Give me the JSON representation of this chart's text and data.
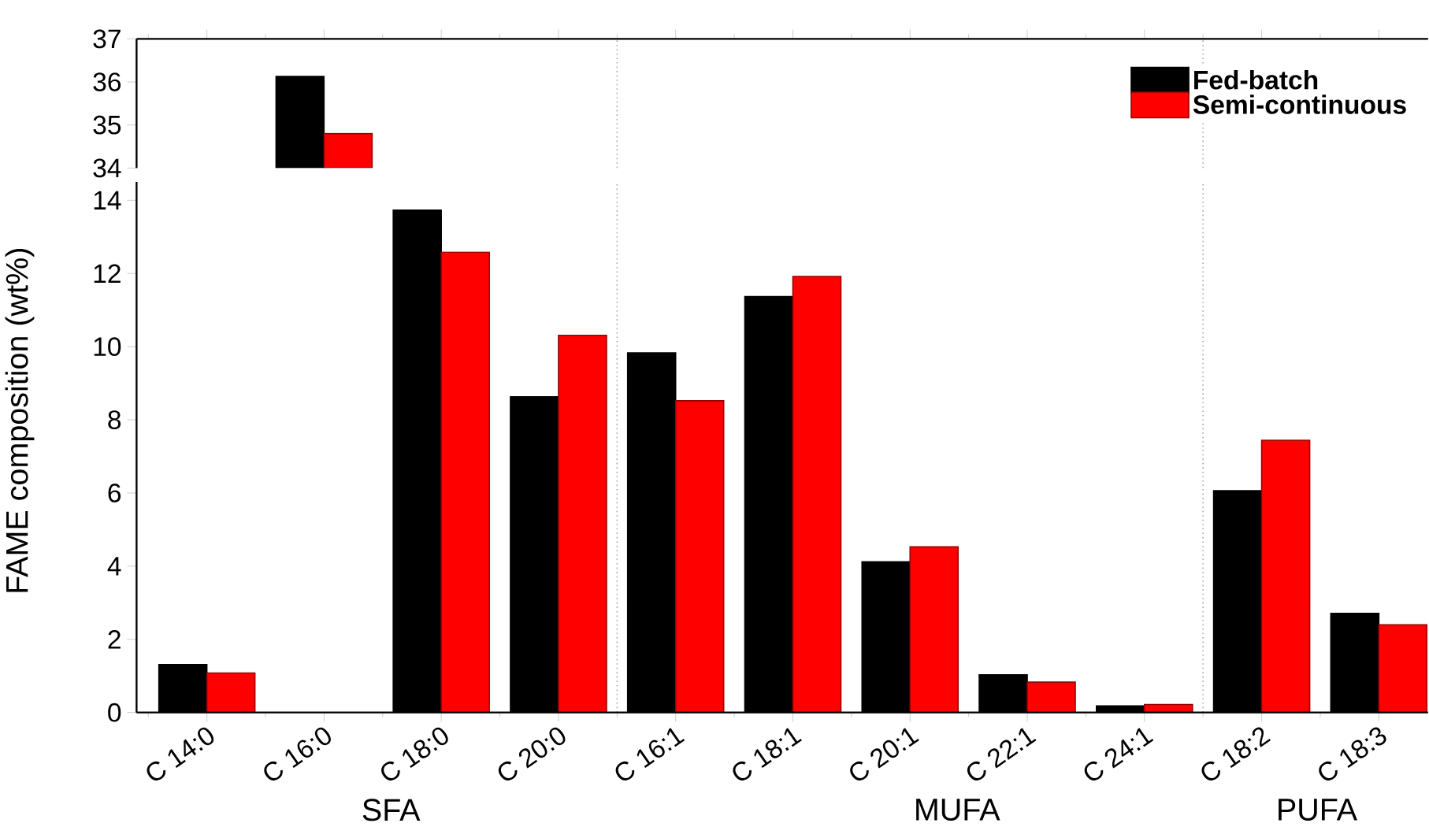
{
  "chart_data": [
    {
      "type": "bar",
      "categories": [
        null,
        null,
        null,
        null,
        null,
        null,
        null,
        null,
        null,
        null,
        null
      ],
      "series": [
        {
          "name": "Fed-batch",
          "color": "#000000",
          "values": [
            null,
            36.13,
            null,
            null,
            null,
            null,
            null,
            null,
            null,
            null,
            null
          ]
        },
        {
          "name": "Semi-continuous",
          "color": "#ff0000",
          "values": [
            null,
            34.8,
            null,
            null,
            null,
            null,
            null,
            null,
            null,
            null,
            null
          ]
        }
      ],
      "ylim": [
        34,
        37
      ],
      "yticks": [
        34,
        35,
        36,
        37
      ],
      "tick_labels": "y",
      "legend": "top right"
    },
    {
      "type": "bar",
      "categories": [
        "C 14:0",
        "C 16:0",
        "C 18:0",
        "C 20:0",
        "C 16:1",
        "C 18:1",
        "C 20:1",
        "C 22:1",
        "C 24:1",
        "C 18:2",
        "C 18:3"
      ],
      "ylabel": "FAME composition (wt%)",
      "series": [
        {
          "color": "#000000",
          "values": [
            1.31,
            null,
            13.73,
            8.63,
            9.83,
            11.37,
            4.12,
            1.03,
            0.18,
            6.06,
            2.71
          ]
        },
        {
          "color": "#ff0000",
          "values": [
            1.08,
            null,
            12.58,
            10.31,
            8.52,
            11.92,
            4.53,
            0.83,
            0.22,
            7.44,
            2.4
          ]
        }
      ],
      "ylim": [
        0,
        14.5
      ],
      "yticks": [
        0,
        2,
        4,
        6,
        8,
        10,
        12,
        14
      ],
      "annotations": [
        "SFA",
        "MUFA",
        "PUFA"
      ]
    }
  ]
}
